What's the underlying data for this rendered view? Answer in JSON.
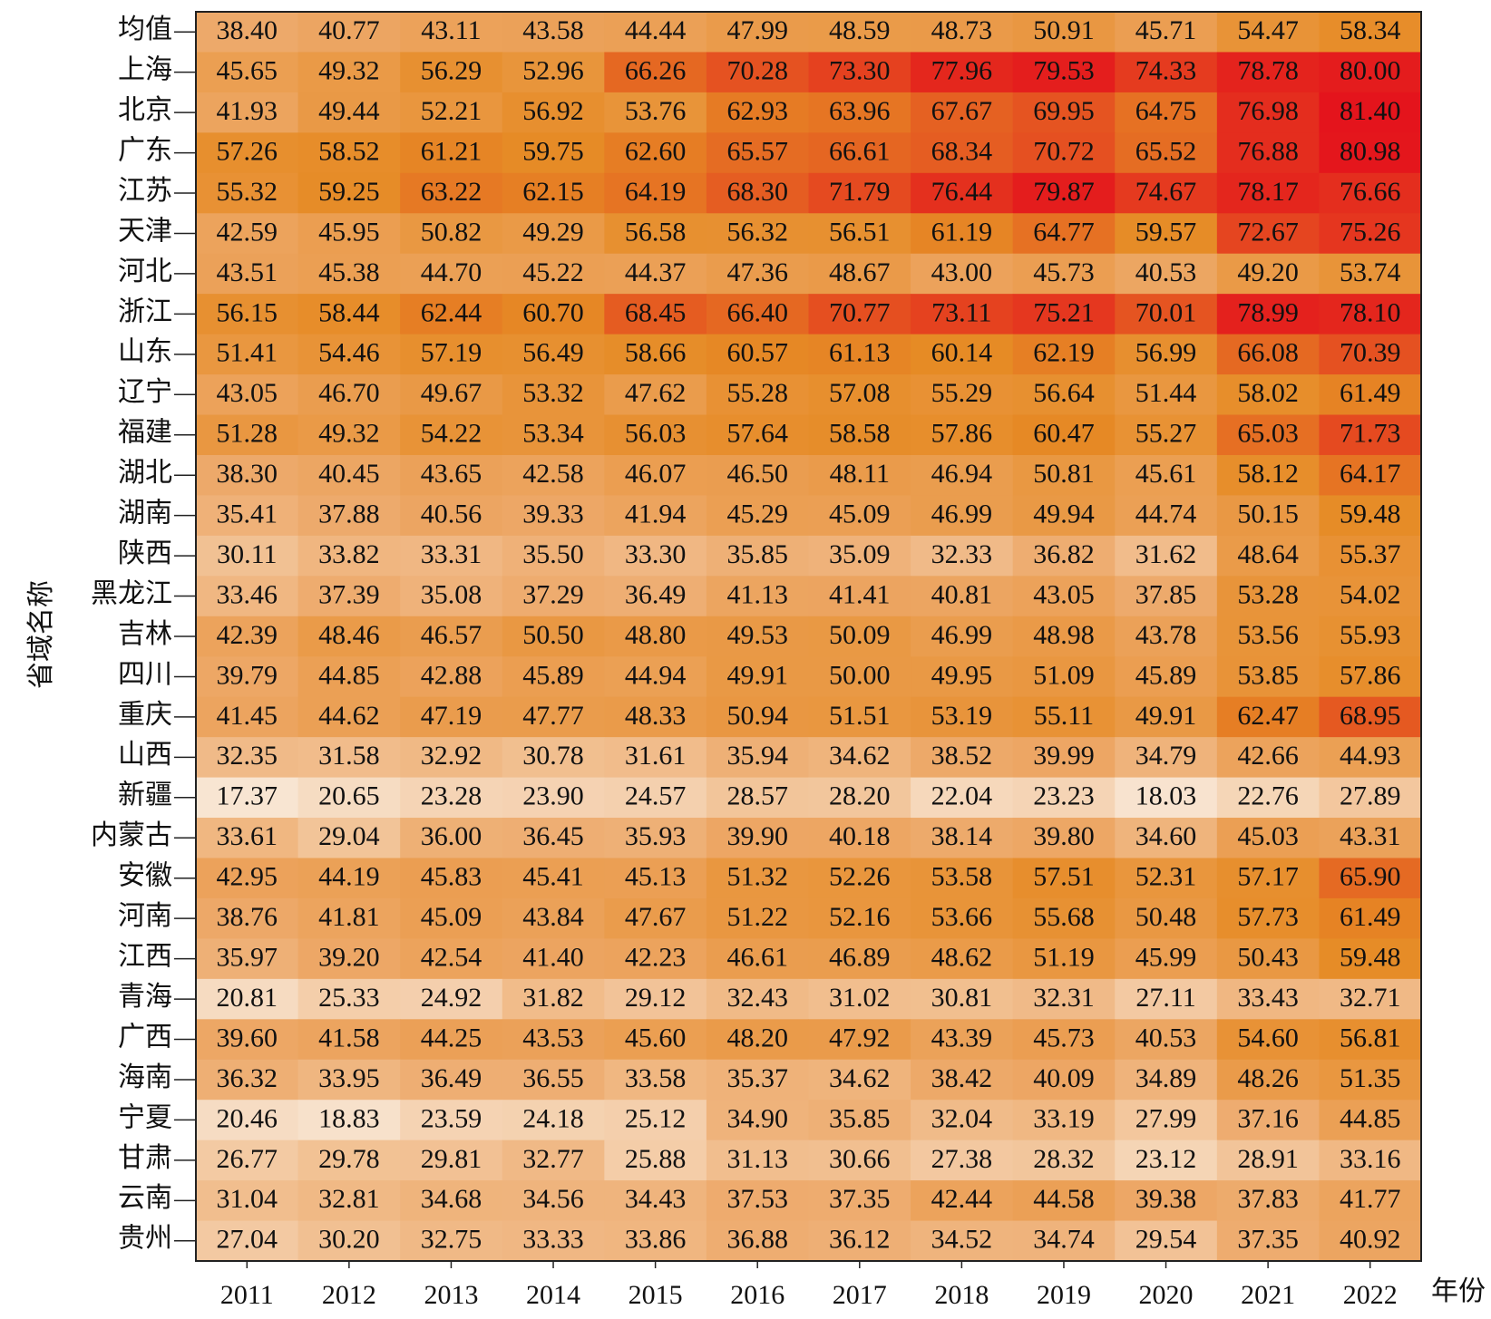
{
  "chart_data": {
    "type": "heatmap",
    "x_label": "年份",
    "y_label": "省域名称",
    "categories": [
      "2011",
      "2012",
      "2013",
      "2014",
      "2015",
      "2016",
      "2017",
      "2018",
      "2019",
      "2020",
      "2021",
      "2022"
    ],
    "rows": [
      "均值",
      "上海",
      "北京",
      "广东",
      "江苏",
      "天津",
      "河北",
      "浙江",
      "山东",
      "辽宁",
      "福建",
      "湖北",
      "湖南",
      "陕西",
      "黑龙江",
      "吉林",
      "四川",
      "重庆",
      "山西",
      "新疆",
      "内蒙古",
      "安徽",
      "河南",
      "江西",
      "青海",
      "广西",
      "海南",
      "宁夏",
      "甘肃",
      "云南",
      "贵州"
    ],
    "values": [
      [
        38.4,
        40.77,
        43.11,
        43.58,
        44.44,
        47.99,
        48.59,
        48.73,
        50.91,
        45.71,
        54.47,
        58.34
      ],
      [
        45.65,
        49.32,
        56.29,
        52.96,
        66.26,
        70.28,
        73.3,
        77.96,
        79.53,
        74.33,
        78.78,
        80.0
      ],
      [
        41.93,
        49.44,
        52.21,
        56.92,
        53.76,
        62.93,
        63.96,
        67.67,
        69.95,
        64.75,
        76.98,
        81.4
      ],
      [
        57.26,
        58.52,
        61.21,
        59.75,
        62.6,
        65.57,
        66.61,
        68.34,
        70.72,
        65.52,
        76.88,
        80.98
      ],
      [
        55.32,
        59.25,
        63.22,
        62.15,
        64.19,
        68.3,
        71.79,
        76.44,
        79.87,
        74.67,
        78.17,
        76.66
      ],
      [
        42.59,
        45.95,
        50.82,
        49.29,
        56.58,
        56.32,
        56.51,
        61.19,
        64.77,
        59.57,
        72.67,
        75.26
      ],
      [
        43.51,
        45.38,
        44.7,
        45.22,
        44.37,
        47.36,
        48.67,
        43.0,
        45.73,
        40.53,
        49.2,
        53.74
      ],
      [
        56.15,
        58.44,
        62.44,
        60.7,
        68.45,
        66.4,
        70.77,
        73.11,
        75.21,
        70.01,
        78.99,
        78.1
      ],
      [
        51.41,
        54.46,
        57.19,
        56.49,
        58.66,
        60.57,
        61.13,
        60.14,
        62.19,
        56.99,
        66.08,
        70.39
      ],
      [
        43.05,
        46.7,
        49.67,
        53.32,
        47.62,
        55.28,
        57.08,
        55.29,
        56.64,
        51.44,
        58.02,
        61.49
      ],
      [
        51.28,
        49.32,
        54.22,
        53.34,
        56.03,
        57.64,
        58.58,
        57.86,
        60.47,
        55.27,
        65.03,
        71.73
      ],
      [
        38.3,
        40.45,
        43.65,
        42.58,
        46.07,
        46.5,
        48.11,
        46.94,
        50.81,
        45.61,
        58.12,
        64.17
      ],
      [
        35.41,
        37.88,
        40.56,
        39.33,
        41.94,
        45.29,
        45.09,
        46.99,
        49.94,
        44.74,
        50.15,
        59.48
      ],
      [
        30.11,
        33.82,
        33.31,
        35.5,
        33.3,
        35.85,
        35.09,
        32.33,
        36.82,
        31.62,
        48.64,
        55.37
      ],
      [
        33.46,
        37.39,
        35.08,
        37.29,
        36.49,
        41.13,
        41.41,
        40.81,
        43.05,
        37.85,
        53.28,
        54.02
      ],
      [
        42.39,
        48.46,
        46.57,
        50.5,
        48.8,
        49.53,
        50.09,
        46.99,
        48.98,
        43.78,
        53.56,
        55.93
      ],
      [
        39.79,
        44.85,
        42.88,
        45.89,
        44.94,
        49.91,
        50.0,
        49.95,
        51.09,
        45.89,
        53.85,
        57.86
      ],
      [
        41.45,
        44.62,
        47.19,
        47.77,
        48.33,
        50.94,
        51.51,
        53.19,
        55.11,
        49.91,
        62.47,
        68.95
      ],
      [
        32.35,
        31.58,
        32.92,
        30.78,
        31.61,
        35.94,
        34.62,
        38.52,
        39.99,
        34.79,
        42.66,
        44.93
      ],
      [
        17.37,
        20.65,
        23.28,
        23.9,
        24.57,
        28.57,
        28.2,
        22.04,
        23.23,
        18.03,
        22.76,
        27.89
      ],
      [
        33.61,
        29.04,
        36.0,
        36.45,
        35.93,
        39.9,
        40.18,
        38.14,
        39.8,
        34.6,
        45.03,
        43.31
      ],
      [
        42.95,
        44.19,
        45.83,
        45.41,
        45.13,
        51.32,
        52.26,
        53.58,
        57.51,
        52.31,
        57.17,
        65.9
      ],
      [
        38.76,
        41.81,
        45.09,
        43.84,
        47.67,
        51.22,
        52.16,
        53.66,
        55.68,
        50.48,
        57.73,
        61.49
      ],
      [
        35.97,
        39.2,
        42.54,
        41.4,
        42.23,
        46.61,
        46.89,
        48.62,
        51.19,
        45.99,
        50.43,
        59.48
      ],
      [
        20.81,
        25.33,
        24.92,
        31.82,
        29.12,
        32.43,
        31.02,
        30.81,
        32.31,
        27.11,
        33.43,
        32.71
      ],
      [
        39.6,
        41.58,
        44.25,
        43.53,
        45.6,
        48.2,
        47.92,
        43.39,
        45.73,
        40.53,
        54.6,
        56.81
      ],
      [
        36.32,
        33.95,
        36.49,
        36.55,
        33.58,
        35.37,
        34.62,
        38.42,
        40.09,
        34.89,
        48.26,
        51.35
      ],
      [
        20.46,
        18.83,
        23.59,
        24.18,
        25.12,
        34.9,
        35.85,
        32.04,
        33.19,
        27.99,
        37.16,
        44.85
      ],
      [
        26.77,
        29.78,
        29.81,
        32.77,
        25.88,
        31.13,
        30.66,
        27.38,
        28.32,
        23.12,
        28.91,
        33.16
      ],
      [
        31.04,
        32.81,
        34.68,
        34.56,
        34.43,
        37.53,
        37.35,
        42.44,
        44.58,
        39.38,
        37.83,
        41.77
      ],
      [
        27.04,
        30.2,
        32.75,
        33.33,
        33.86,
        36.88,
        36.12,
        34.52,
        34.74,
        29.54,
        37.35,
        40.92
      ]
    ],
    "value_labels": [
      [
        "38.40",
        "40.77",
        "43.11",
        "43.58",
        "44.44",
        "47.99",
        "48.59",
        "48.73",
        "50.91",
        "45.71",
        "54.47",
        "58.34"
      ],
      [
        "45.65",
        "49.32",
        "56.29",
        "52.96",
        "66.26",
        "70.28",
        "73.30",
        "77.96",
        "79.53",
        "74.33",
        "78.78",
        "80.00"
      ],
      [
        "41.93",
        "49.44",
        "52.21",
        "56.92",
        "53.76",
        "62.93",
        "63.96",
        "67.67",
        "69.95",
        "64.75",
        "76.98",
        "81.40"
      ],
      [
        "57.26",
        "58.52",
        "61.21",
        "59.75",
        "62.60",
        "65.57",
        "66.61",
        "68.34",
        "70.72",
        "65.52",
        "76.88",
        "80.98"
      ],
      [
        "55.32",
        "59.25",
        "63.22",
        "62.15",
        "64.19",
        "68.30",
        "71.79",
        "76.44",
        "79.87",
        "74.67",
        "78.17",
        "76.66"
      ],
      [
        "42.59",
        "45.95",
        "50.82",
        "49.29",
        "56.58",
        "56.32",
        "56.51",
        "61.19",
        "64.77",
        "59.57",
        "72.67",
        "75.26"
      ],
      [
        "43.51",
        "45.38",
        "44.70",
        "45.22",
        "44.37",
        "47.36",
        "48.67",
        "43.00",
        "45.73",
        "40.53",
        "49.20",
        "53.74"
      ],
      [
        "56.15",
        "58.44",
        "62.44",
        "60.70",
        "68.45",
        "66.40",
        "70.77",
        "73.11",
        "75.21",
        "70.01",
        "78.99",
        "78.10"
      ],
      [
        "51.41",
        "54.46",
        "57.19",
        "56.49",
        "58.66",
        "60.57",
        "61.13",
        "60.14",
        "62.19",
        "56.99",
        "66.08",
        "70.39"
      ],
      [
        "43.05",
        "46.70",
        "49.67",
        "53.32",
        "47.62",
        "55.28",
        "57.08",
        "55.29",
        "56.64",
        "51.44",
        "58.02",
        "61.49"
      ],
      [
        "51.28",
        "49.32",
        "54.22",
        "53.34",
        "56.03",
        "57.64",
        "58.58",
        "57.86",
        "60.47",
        "55.27",
        "65.03",
        "71.73"
      ],
      [
        "38.30",
        "40.45",
        "43.65",
        "42.58",
        "46.07",
        "46.50",
        "48.11",
        "46.94",
        "50.81",
        "45.61",
        "58.12",
        "64.17"
      ],
      [
        "35.41",
        "37.88",
        "40.56",
        "39.33",
        "41.94",
        "45.29",
        "45.09",
        "46.99",
        "49.94",
        "44.74",
        "50.15",
        "59.48"
      ],
      [
        "30.11",
        "33.82",
        "33.31",
        "35.50",
        "33.30",
        "35.85",
        "35.09",
        "32.33",
        "36.82",
        "31.62",
        "48.64",
        "55.37"
      ],
      [
        "33.46",
        "37.39",
        "35.08",
        "37.29",
        "36.49",
        "41.13",
        "41.41",
        "40.81",
        "43.05",
        "37.85",
        "53.28",
        "54.02"
      ],
      [
        "42.39",
        "48.46",
        "46.57",
        "50.50",
        "48.80",
        "49.53",
        "50.09",
        "46.99",
        "48.98",
        "43.78",
        "53.56",
        "55.93"
      ],
      [
        "39.79",
        "44.85",
        "42.88",
        "45.89",
        "44.94",
        "49.91",
        "50.00",
        "49.95",
        "51.09",
        "45.89",
        "53.85",
        "57.86"
      ],
      [
        "41.45",
        "44.62",
        "47.19",
        "47.77",
        "48.33",
        "50.94",
        "51.51",
        "53.19",
        "55.11",
        "49.91",
        "62.47",
        "68.95"
      ],
      [
        "32.35",
        "31.58",
        "32.92",
        "30.78",
        "31.61",
        "35.94",
        "34.62",
        "38.52",
        "39.99",
        "34.79",
        "42.66",
        "44.93"
      ],
      [
        "17.37",
        "20.65",
        "23.28",
        "23.90",
        "24.57",
        "28.57",
        "28.20",
        "22.04",
        "23.23",
        "18.03",
        "22.76",
        "27.89"
      ],
      [
        "33.61",
        "29.04",
        "36.00",
        "36.45",
        "35.93",
        "39.90",
        "40.18",
        "38.14",
        "39.80",
        "34.60",
        "45.03",
        "43.31"
      ],
      [
        "42.95",
        "44.19",
        "45.83",
        "45.41",
        "45.13",
        "51.32",
        "52.26",
        "53.58",
        "57.51",
        "52.31",
        "57.17",
        "65.90"
      ],
      [
        "38.76",
        "41.81",
        "45.09",
        "43.84",
        "47.67",
        "51.22",
        "52.16",
        "53.66",
        "55.68",
        "50.48",
        "57.73",
        "61.49"
      ],
      [
        "35.97",
        "39.20",
        "42.54",
        "41.40",
        "42.23",
        "46.61",
        "46.89",
        "48.62",
        "51.19",
        "45.99",
        "50.43",
        "59.48"
      ],
      [
        "20.81",
        "25.33",
        "24.92",
        "31.82",
        "29.12",
        "32.43",
        "31.02",
        "30.81",
        "32.31",
        "27.11",
        "33.43",
        "32.71"
      ],
      [
        "39.60",
        "41.58",
        "44.25",
        "43.53",
        "45.60",
        "48.20",
        "47.92",
        "43.39",
        "45.73",
        "40.53",
        "54.60",
        "56.81"
      ],
      [
        "36.32",
        "33.95",
        "36.49",
        "36.55",
        "33.58",
        "35.37",
        "34.62",
        "38.42",
        "40.09",
        "34.89",
        "48.26",
        "51.35"
      ],
      [
        "20.46",
        "18.83",
        "23.59",
        "24.18",
        "25.12",
        "34.90",
        "35.85",
        "32.04",
        "33.19",
        "27.99",
        "37.16",
        "44.85"
      ],
      [
        "26.77",
        "29.78",
        "29.81",
        "32.77",
        "25.88",
        "31.13",
        "30.66",
        "27.38",
        "28.32",
        "23.12",
        "28.91",
        "33.16"
      ],
      [
        "31.04",
        "32.81",
        "34.68",
        "34.56",
        "34.43",
        "37.53",
        "37.35",
        "42.44",
        "44.58",
        "39.38",
        "37.83",
        "41.77"
      ],
      [
        "27.04",
        "30.20",
        "32.75",
        "33.33",
        "33.86",
        "36.88",
        "36.12",
        "34.52",
        "34.74",
        "29.54",
        "37.35",
        "40.92"
      ]
    ],
    "colormap": [
      "#f8e5d2",
      "#eda868",
      "#e68b25",
      "#e4141c"
    ]
  }
}
